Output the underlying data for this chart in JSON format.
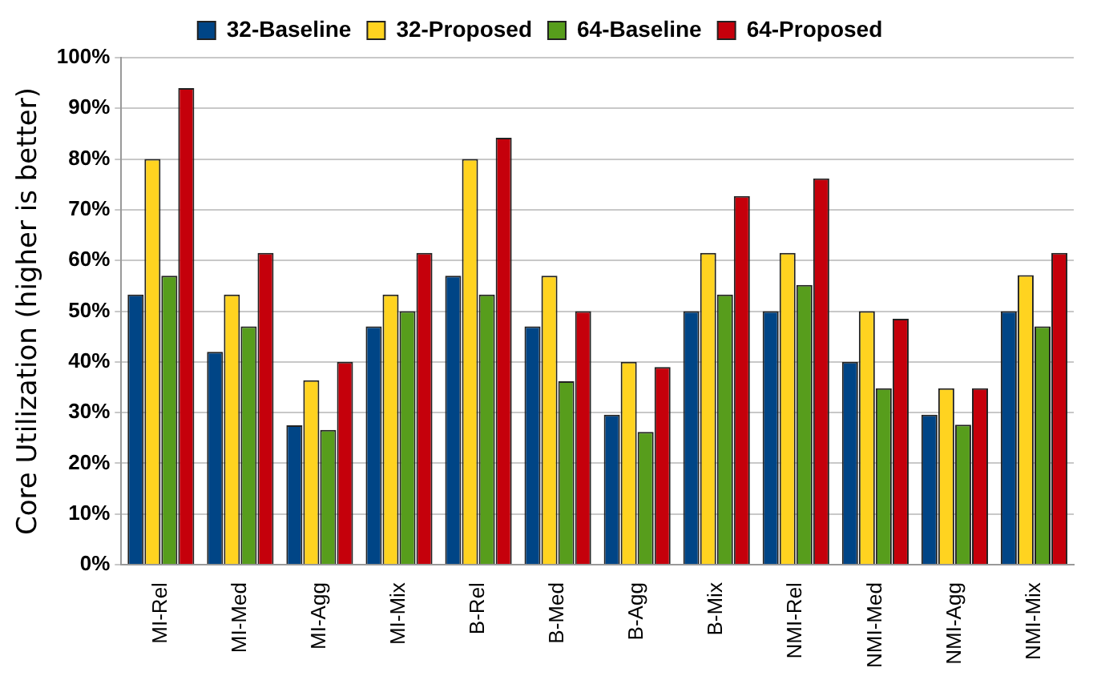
{
  "chart_data": {
    "type": "bar",
    "ylabel": "Core Utilization (higher is better)",
    "categories": [
      "MI-Rel",
      "MI-Med",
      "MI-Agg",
      "MI-Mix",
      "B-Rel",
      "B-Med",
      "B-Agg",
      "B-Mix",
      "NMI-Rel",
      "NMI-Med",
      "NMI-Agg",
      "NMI-Mix"
    ],
    "series": [
      {
        "name": "32-Baseline",
        "color": "#004586",
        "values": [
          53.3,
          42,
          27.5,
          47,
          57,
          47,
          29.6,
          50,
          50,
          40,
          29.6,
          50
        ]
      },
      {
        "name": "32-Proposed",
        "color": "#ffd320",
        "values": [
          80,
          53.3,
          36.4,
          53.3,
          80,
          57,
          40,
          61.5,
          61.5,
          50,
          34.8,
          57.1
        ]
      },
      {
        "name": "64-Baseline",
        "color": "#579d1c",
        "values": [
          57,
          47,
          26.6,
          50,
          53.3,
          36.2,
          26.2,
          53.3,
          55.2,
          34.8,
          27.6,
          47
        ]
      },
      {
        "name": "64-Proposed",
        "color": "#c5000b",
        "values": [
          94,
          61.5,
          40,
          61.5,
          84.2,
          50,
          39,
          72.7,
          76.2,
          48.5,
          34.8,
          61.5
        ]
      }
    ],
    "ylim": [
      0,
      100
    ],
    "yticks": [
      {
        "value": 0,
        "label": "0%"
      },
      {
        "value": 10,
        "label": "10%"
      },
      {
        "value": 20,
        "label": "20%"
      },
      {
        "value": 30,
        "label": "30%"
      },
      {
        "value": 40,
        "label": "40%"
      },
      {
        "value": 50,
        "label": "50%"
      },
      {
        "value": 60,
        "label": "60%"
      },
      {
        "value": 70,
        "label": "70%"
      },
      {
        "value": 80,
        "label": "80%"
      },
      {
        "value": 90,
        "label": "90%"
      },
      {
        "value": 100,
        "label": "100%"
      }
    ],
    "grid": "y",
    "legend": "top"
  }
}
